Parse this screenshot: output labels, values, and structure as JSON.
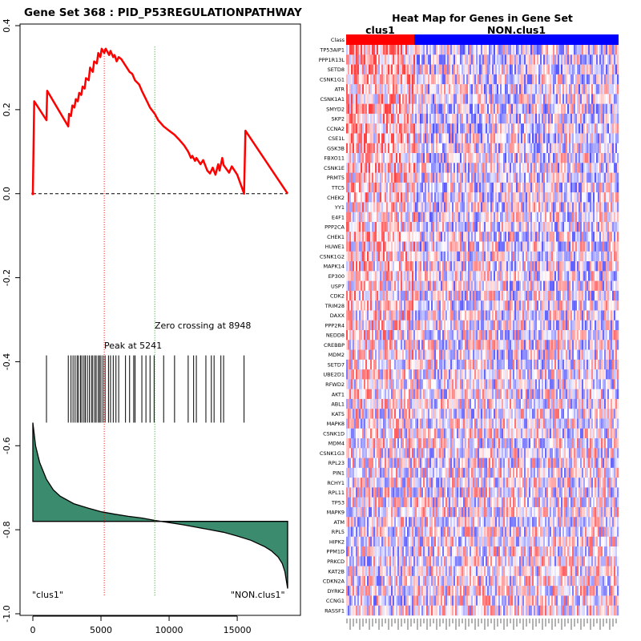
{
  "chart_data": [
    {
      "type": "line",
      "title": "Gene Set  368 : PID_P53REGULATIONPATHWAY",
      "xlabel": "",
      "ylabel": "",
      "xlim": [
        0,
        18700
      ],
      "ylim": [
        -1.0,
        0.4
      ],
      "xticks": [
        0,
        5000,
        10000,
        15000
      ],
      "xtick_labels": [
        "0",
        "5000",
        "10000",
        "15000"
      ],
      "yticks": [
        0.4,
        0.2,
        0.0,
        -0.2,
        -0.4,
        -0.6,
        -0.8,
        -1.0
      ],
      "ytick_labels": [
        "0.4",
        "0.2",
        "0.0",
        "-0.2",
        "-0.4",
        "-0.6",
        "-0.8",
        "-1.0"
      ],
      "series": [
        {
          "name": "running enrichment score",
          "color": "#ff0000",
          "x": [
            0,
            100,
            1000,
            1050,
            2600,
            2650,
            2800,
            2900,
            3050,
            3150,
            3300,
            3400,
            3550,
            3650,
            3800,
            3900,
            4100,
            4200,
            4400,
            4500,
            4700,
            4800,
            4950,
            5050,
            5241,
            5350,
            5600,
            5700,
            5900,
            6000,
            6150,
            6300,
            6500,
            6800,
            7100,
            7300,
            7500,
            7800,
            8000,
            8300,
            8600,
            8948,
            9200,
            9600,
            10000,
            10400,
            10700,
            11100,
            11400,
            11600,
            11700,
            11900,
            12000,
            12300,
            12500,
            12800,
            13000,
            13200,
            13400,
            13600,
            13700,
            13900,
            14000,
            14400,
            14600,
            15000,
            15500,
            15600,
            18700
          ],
          "y": [
            0.0,
            0.22,
            0.175,
            0.245,
            0.16,
            0.19,
            0.185,
            0.21,
            0.205,
            0.225,
            0.22,
            0.24,
            0.235,
            0.255,
            0.25,
            0.275,
            0.27,
            0.3,
            0.29,
            0.315,
            0.31,
            0.335,
            0.325,
            0.345,
            0.335,
            0.345,
            0.33,
            0.34,
            0.325,
            0.33,
            0.315,
            0.325,
            0.32,
            0.305,
            0.29,
            0.285,
            0.27,
            0.26,
            0.245,
            0.225,
            0.205,
            0.19,
            0.175,
            0.16,
            0.15,
            0.14,
            0.13,
            0.115,
            0.1,
            0.085,
            0.09,
            0.078,
            0.085,
            0.07,
            0.08,
            0.055,
            0.048,
            0.062,
            0.045,
            0.07,
            0.055,
            0.085,
            0.068,
            0.05,
            0.065,
            0.045,
            0.0,
            0.15,
            0.0
          ]
        },
        {
          "name": "ranked metric",
          "color": "#3b8b6e",
          "x": [
            0,
            200,
            500,
            1000,
            1500,
            2000,
            3000,
            4000,
            5000,
            6000,
            7000,
            8000,
            9000,
            10000,
            11000,
            12000,
            13000,
            14000,
            15000,
            16000,
            17000,
            17500,
            18000,
            18300,
            18500,
            18700
          ],
          "y": [
            -0.545,
            -0.6,
            -0.64,
            -0.68,
            -0.705,
            -0.72,
            -0.738,
            -0.748,
            -0.757,
            -0.763,
            -0.768,
            -0.772,
            -0.778,
            -0.783,
            -0.788,
            -0.794,
            -0.8,
            -0.806,
            -0.815,
            -0.825,
            -0.84,
            -0.85,
            -0.865,
            -0.88,
            -0.9,
            -0.94
          ]
        }
      ],
      "hits_x": [
        1000,
        2600,
        2800,
        2950,
        3100,
        3250,
        3350,
        3500,
        3600,
        3750,
        3850,
        4000,
        4150,
        4300,
        4400,
        4550,
        4650,
        4800,
        4900,
        5000,
        5150,
        5300,
        5550,
        5700,
        5900,
        6100,
        6300,
        6800,
        7100,
        7400,
        7500,
        8000,
        8300,
        8600,
        8900,
        9600,
        10400,
        11400,
        11800,
        12000,
        12700,
        13100,
        13300,
        13800,
        14000,
        15500
      ],
      "zero_line": 0.0,
      "metric_baseline": -0.78,
      "peak_x": 5241,
      "zero_crossing_x": 8948,
      "annotations": [
        "Peak at 5241",
        "Zero crossing at 8948",
        "\"clus1\"",
        "\"NON.clus1\""
      ]
    },
    {
      "type": "heatmap",
      "title": "Heat Map for Genes in Gene Set",
      "class_label": "Class",
      "class_groups": [
        {
          "name": "clus1",
          "color": "#ff0000",
          "fraction": 0.25
        },
        {
          "name": "NON.clus1",
          "color": "#0000ff",
          "fraction": 0.75
        }
      ],
      "genes": [
        "TP53AIP1",
        "PPP1R13L",
        "SETD8",
        "CSNK1G1",
        "ATR",
        "CSNK1A1",
        "SMYD2",
        "SKP2",
        "CCNA2",
        "CSE1L",
        "GSK3B",
        "FBXO11",
        "CSNK1E",
        "PRMT5",
        "TTC5",
        "CHEK2",
        "YY1",
        "E4F1",
        "PPP2CA",
        "CHEK1",
        "HUWE1",
        "CSNK1G2",
        "MAPK14",
        "EP300",
        "USP7",
        "CDK2",
        "TRIM28",
        "DAXX",
        "PPP2R4",
        "NEDD8",
        "CREBBP",
        "MDM2",
        "SETD7",
        "UBE2D1",
        "RFWD2",
        "AKT1",
        "ABL1",
        "KAT5",
        "MAPK8",
        "CSNK1D",
        "MDM4",
        "CSNK1G3",
        "RPL23",
        "PIN1",
        "RCHY1",
        "RPL11",
        "TP53",
        "MAPK9",
        "ATM",
        "RPL5",
        "HIPK2",
        "PPM1D",
        "PRKCD",
        "KAT2B",
        "CDKN2A",
        "DYRK2",
        "CCNG1",
        "RASSF1"
      ],
      "colors": {
        "high": "#ff0000",
        "neutral": "#ffffff",
        "low": "#0000ff"
      }
    }
  ]
}
